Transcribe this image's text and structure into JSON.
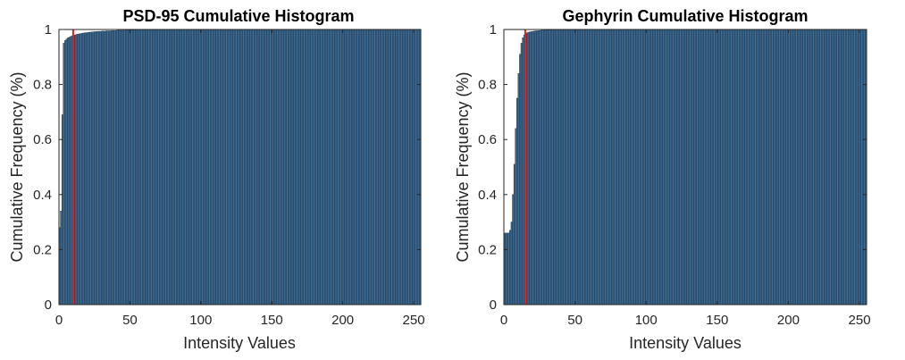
{
  "colors": {
    "bar_fill": "#3f6e97",
    "bar_edge": "#21384f",
    "threshold_line": "#e0201b",
    "axis": "#262626"
  },
  "chart_data": [
    {
      "type": "bar",
      "title": "PSD-95 Cumulative Histogram",
      "xlabel": "Intensity Values",
      "ylabel": "Cumulative Frequency (%)",
      "xlim": [
        0,
        255
      ],
      "ylim": [
        0,
        1
      ],
      "xticks": [
        "0",
        "50",
        "100",
        "150",
        "200",
        "250"
      ],
      "yticks": [
        "0",
        "0.2",
        "0.4",
        "0.6",
        "0.8",
        "1"
      ],
      "grid": false,
      "bins": "integer intensity values 0-255",
      "values": [
        0.28,
        0.34,
        0.69,
        0.95,
        0.96,
        0.965,
        0.97,
        0.972,
        0.975,
        0.977,
        0.979,
        0.98,
        0.982,
        0.983,
        0.984,
        0.985,
        0.986,
        0.987,
        0.988,
        0.988,
        0.989,
        0.99,
        0.99,
        0.991,
        0.991,
        0.992,
        0.992,
        0.993,
        0.993,
        0.993,
        0.994,
        0.994,
        0.994,
        0.995,
        0.995,
        0.995,
        0.995,
        0.996,
        0.996,
        0.996,
        0.996,
        0.997,
        0.997,
        0.997,
        0.997,
        0.997,
        0.997,
        0.998,
        0.998,
        0.998,
        0.998,
        0.998,
        0.998,
        0.998,
        0.998,
        0.999,
        0.999,
        0.999,
        0.999,
        0.999,
        0.999,
        0.999,
        0.999,
        0.999,
        0.999,
        0.999,
        0.999,
        0.999,
        0.999,
        0.999,
        0.999,
        0.999,
        0.999,
        0.999,
        0.999,
        0.999,
        0.999,
        0.999,
        0.999,
        0.999,
        1
      ],
      "fill_to_end_value": 1,
      "threshold_x": 10
    },
    {
      "type": "bar",
      "title": "Gephyrin Cumulative Histogram",
      "xlabel": "Intensity Values",
      "ylabel": "Cumulative Frequency (%)",
      "xlim": [
        0,
        255
      ],
      "ylim": [
        0,
        1
      ],
      "xticks": [
        "0",
        "50",
        "100",
        "150",
        "200",
        "250"
      ],
      "yticks": [
        "0",
        "0.2",
        "0.4",
        "0.6",
        "0.8",
        "1"
      ],
      "grid": false,
      "bins": "integer intensity values 0-255",
      "values": [
        0.26,
        0.26,
        0.26,
        0.26,
        0.27,
        0.3,
        0.4,
        0.51,
        0.64,
        0.75,
        0.84,
        0.91,
        0.95,
        0.97,
        0.98,
        0.985,
        0.988,
        0.99,
        0.991,
        0.992,
        0.993,
        0.994,
        0.995,
        0.995,
        0.996,
        0.996,
        0.997,
        0.997,
        0.997,
        0.998,
        0.998,
        0.998,
        0.998,
        0.998,
        0.999,
        0.999,
        0.999,
        0.999,
        0.999,
        0.999,
        0.999,
        0.999,
        0.999,
        0.999,
        0.999,
        0.999,
        0.999,
        0.999,
        0.999,
        0.999,
        0.999,
        0.999,
        0.999,
        0.999,
        0.999,
        0.999,
        1
      ],
      "fill_to_end_value": 1,
      "threshold_x": 15
    }
  ]
}
